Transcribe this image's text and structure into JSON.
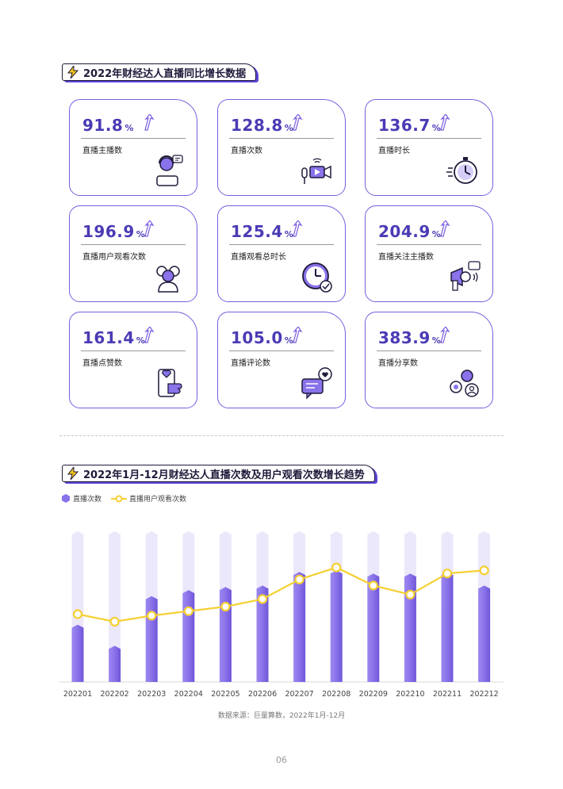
{
  "section1": {
    "title": "2022年财经达人直播同比增长数据"
  },
  "cards": [
    {
      "value": "91.8",
      "unit": "%",
      "label": "直播主播数",
      "icon": "streamer-headset-icon"
    },
    {
      "value": "128.8",
      "unit": "%",
      "label": "直播次数",
      "icon": "video-camera-icon"
    },
    {
      "value": "136.7",
      "unit": "%",
      "label": "直播时长",
      "icon": "stopwatch-icon"
    },
    {
      "value": "196.9",
      "unit": "%",
      "label": "直播用户观看次数",
      "icon": "users-icon"
    },
    {
      "value": "125.4",
      "unit": "%",
      "label": "直播观看总时长",
      "icon": "clock-check-icon"
    },
    {
      "value": "204.9",
      "unit": "%",
      "label": "直播关注主播数",
      "icon": "megaphone-icon"
    },
    {
      "value": "161.4",
      "unit": "%",
      "label": "直播点赞数",
      "icon": "phone-like-icon"
    },
    {
      "value": "105.0",
      "unit": "%",
      "label": "直播评论数",
      "icon": "comment-heart-icon"
    },
    {
      "value": "383.9",
      "unit": "%",
      "label": "直播分享数",
      "icon": "share-people-icon"
    }
  ],
  "section2": {
    "title": "2022年1月-12月财经达人直播次数及用户观看次数增长趋势"
  },
  "chart_data": {
    "type": "bar",
    "categories": [
      "202201",
      "202202",
      "202203",
      "202204",
      "202205",
      "202206",
      "202207",
      "202208",
      "202209",
      "202210",
      "202211",
      "202212"
    ],
    "series": [
      {
        "name": "直播次数",
        "kind": "bar",
        "values": [
          0.38,
          0.24,
          0.57,
          0.61,
          0.63,
          0.64,
          0.73,
          0.74,
          0.72,
          0.72,
          0.73,
          0.64
        ]
      },
      {
        "name": "直播用户观看次数",
        "kind": "line",
        "values": [
          0.45,
          0.4,
          0.44,
          0.47,
          0.5,
          0.55,
          0.68,
          0.76,
          0.64,
          0.58,
          0.72,
          0.74
        ]
      }
    ],
    "ylim": [
      0,
      1
    ],
    "grid": false,
    "legend": "top-left",
    "colors": {
      "bar": "#8a72ea",
      "bar_track": "#ece8fb",
      "line": "#f5d033"
    }
  },
  "source": "数据来源：巨量算数，2022年1月-12月",
  "page_number": "06"
}
